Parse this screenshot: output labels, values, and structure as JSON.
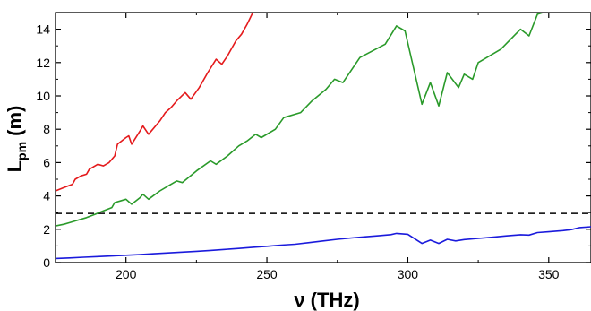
{
  "chart_data": {
    "type": "line",
    "title": "",
    "xlabel": "ν (THz)",
    "ylabel_main": "L",
    "ylabel_sub": "pm",
    "ylabel_unit": " (m)",
    "xlim": [
      175,
      365
    ],
    "ylim": [
      0,
      15
    ],
    "x_ticks": [
      200,
      250,
      300,
      350
    ],
    "y_ticks": [
      0,
      2,
      4,
      6,
      8,
      10,
      12,
      14
    ],
    "grid": false,
    "legend": "none",
    "reference_line": {
      "y": 2.95,
      "style": "dashed",
      "color": "#000000"
    },
    "series": [
      {
        "color": "#e41a1c",
        "points": [
          [
            175,
            4.3
          ],
          [
            178,
            4.5
          ],
          [
            181,
            4.7
          ],
          [
            182,
            5.0
          ],
          [
            184,
            5.2
          ],
          [
            186,
            5.3
          ],
          [
            187,
            5.6
          ],
          [
            190,
            5.9
          ],
          [
            192,
            5.8
          ],
          [
            194,
            6.0
          ],
          [
            196,
            6.4
          ],
          [
            197,
            7.1
          ],
          [
            200,
            7.5
          ],
          [
            201,
            7.6
          ],
          [
            202,
            7.1
          ],
          [
            205,
            7.9
          ],
          [
            206,
            8.2
          ],
          [
            208,
            7.7
          ],
          [
            212,
            8.5
          ],
          [
            214,
            9.0
          ],
          [
            216,
            9.3
          ],
          [
            218,
            9.7
          ],
          [
            221,
            10.2
          ],
          [
            223,
            9.8
          ],
          [
            226,
            10.5
          ],
          [
            229,
            11.4
          ],
          [
            232,
            12.2
          ],
          [
            234,
            11.9
          ],
          [
            236,
            12.4
          ],
          [
            239,
            13.3
          ],
          [
            241,
            13.7
          ],
          [
            243,
            14.3
          ],
          [
            245,
            15.0
          ]
        ]
      },
      {
        "color": "#2a9a2a",
        "points": [
          [
            175,
            2.2
          ],
          [
            178,
            2.3
          ],
          [
            180,
            2.4
          ],
          [
            182,
            2.5
          ],
          [
            186,
            2.7
          ],
          [
            189,
            2.9
          ],
          [
            192,
            3.1
          ],
          [
            195,
            3.3
          ],
          [
            196,
            3.6
          ],
          [
            198,
            3.7
          ],
          [
            200,
            3.8
          ],
          [
            202,
            3.5
          ],
          [
            205,
            3.9
          ],
          [
            206,
            4.1
          ],
          [
            208,
            3.8
          ],
          [
            212,
            4.3
          ],
          [
            215,
            4.6
          ],
          [
            218,
            4.9
          ],
          [
            220,
            4.8
          ],
          [
            225,
            5.5
          ],
          [
            230,
            6.1
          ],
          [
            232,
            5.9
          ],
          [
            236,
            6.4
          ],
          [
            240,
            7.0
          ],
          [
            243,
            7.3
          ],
          [
            246,
            7.7
          ],
          [
            248,
            7.5
          ],
          [
            253,
            8.0
          ],
          [
            256,
            8.7
          ],
          [
            262,
            9.0
          ],
          [
            266,
            9.7
          ],
          [
            271,
            10.4
          ],
          [
            274,
            11.0
          ],
          [
            277,
            10.8
          ],
          [
            283,
            12.3
          ],
          [
            292,
            13.1
          ],
          [
            296,
            14.2
          ],
          [
            299,
            13.9
          ],
          [
            305,
            9.5
          ],
          [
            308,
            10.8
          ],
          [
            311,
            9.4
          ],
          [
            314,
            11.4
          ],
          [
            318,
            10.5
          ],
          [
            320,
            11.3
          ],
          [
            323,
            11.0
          ],
          [
            325,
            12.0
          ],
          [
            333,
            12.8
          ],
          [
            340,
            14.0
          ],
          [
            343,
            13.6
          ],
          [
            346,
            14.9
          ],
          [
            348,
            15.0
          ]
        ]
      },
      {
        "color": "#1a1adc",
        "points": [
          [
            175,
            0.25
          ],
          [
            180,
            0.28
          ],
          [
            185,
            0.32
          ],
          [
            190,
            0.36
          ],
          [
            195,
            0.4
          ],
          [
            200,
            0.44
          ],
          [
            205,
            0.48
          ],
          [
            210,
            0.53
          ],
          [
            215,
            0.58
          ],
          [
            220,
            0.63
          ],
          [
            225,
            0.68
          ],
          [
            230,
            0.73
          ],
          [
            235,
            0.79
          ],
          [
            240,
            0.85
          ],
          [
            245,
            0.92
          ],
          [
            250,
            0.98
          ],
          [
            255,
            1.05
          ],
          [
            260,
            1.1
          ],
          [
            265,
            1.2
          ],
          [
            270,
            1.3
          ],
          [
            275,
            1.4
          ],
          [
            280,
            1.48
          ],
          [
            285,
            1.55
          ],
          [
            290,
            1.62
          ],
          [
            294,
            1.68
          ],
          [
            296,
            1.75
          ],
          [
            300,
            1.7
          ],
          [
            305,
            1.15
          ],
          [
            308,
            1.35
          ],
          [
            311,
            1.15
          ],
          [
            314,
            1.4
          ],
          [
            317,
            1.3
          ],
          [
            320,
            1.38
          ],
          [
            325,
            1.45
          ],
          [
            330,
            1.52
          ],
          [
            335,
            1.6
          ],
          [
            340,
            1.67
          ],
          [
            343,
            1.65
          ],
          [
            346,
            1.8
          ],
          [
            350,
            1.85
          ],
          [
            355,
            1.92
          ],
          [
            358,
            1.98
          ],
          [
            361,
            2.1
          ],
          [
            365,
            2.15
          ]
        ]
      }
    ]
  }
}
